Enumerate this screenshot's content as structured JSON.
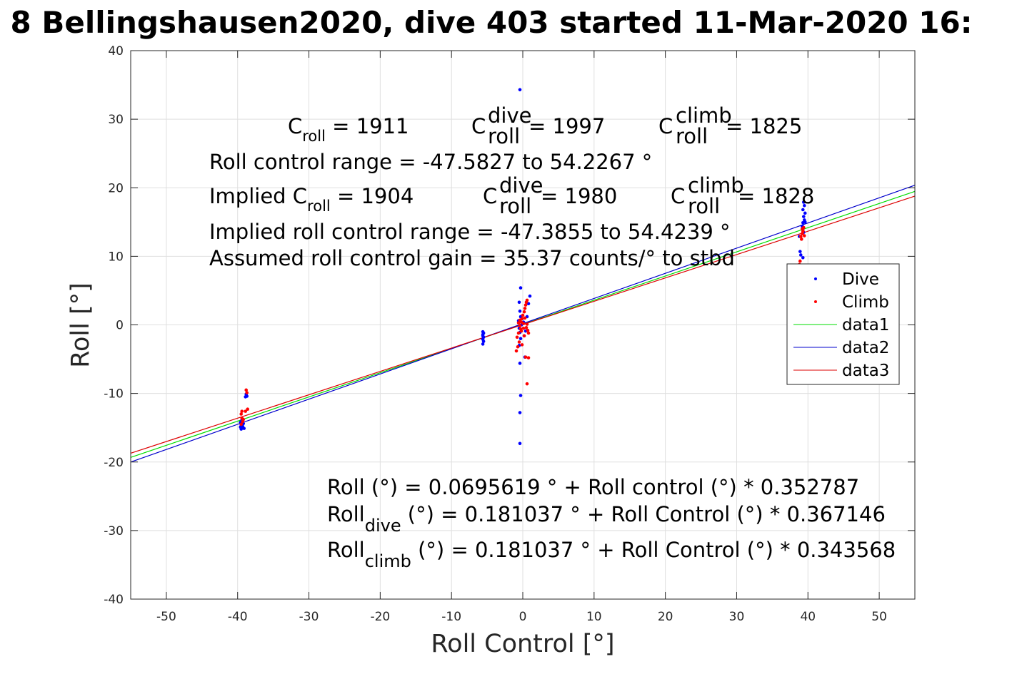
{
  "chart_data": {
    "type": "scatter",
    "title": "8 Bellingshausen2020, dive 403 started 11-Mar-2020 16:",
    "xlabel": "Roll Control [°]",
    "ylabel": "Roll [°]",
    "xlim": [
      -55,
      55
    ],
    "ylim": [
      -40,
      40
    ],
    "grid": true,
    "legend_position": "right",
    "x_ticks": [
      -50,
      -40,
      -30,
      -20,
      -10,
      0,
      10,
      20,
      30,
      40,
      50
    ],
    "y_ticks": [
      -40,
      -30,
      -20,
      -10,
      0,
      10,
      20,
      30,
      40
    ],
    "legend": [
      "Dive",
      "Climb",
      "data1",
      "data2",
      "data3"
    ],
    "series": [
      {
        "name": "Dive",
        "kind": "points",
        "color": "#0000ff",
        "points": [
          [
            -39.6,
            -14.2
          ],
          [
            -39.5,
            -14.6
          ],
          [
            -39.4,
            -15.0
          ],
          [
            -39.3,
            -14.8
          ],
          [
            -39.5,
            -15.2
          ],
          [
            -39.2,
            -14.4
          ],
          [
            -39.4,
            -13.9
          ],
          [
            -39.6,
            -14.9
          ],
          [
            -39.1,
            -15.1
          ],
          [
            -38.9,
            -10.5
          ],
          [
            -38.8,
            -10.1
          ],
          [
            -38.7,
            -10.4
          ],
          [
            -5.6,
            -1.0
          ],
          [
            -5.6,
            -1.4
          ],
          [
            -5.5,
            -1.8
          ],
          [
            -5.6,
            -2.1
          ],
          [
            -5.5,
            -2.4
          ],
          [
            -5.6,
            -2.8
          ],
          [
            -5.5,
            -1.2
          ],
          [
            -5.6,
            -1.6
          ],
          [
            -0.4,
            34.3
          ],
          [
            -0.3,
            5.4
          ],
          [
            -0.5,
            3.3
          ],
          [
            -0.4,
            2.0
          ],
          [
            -0.3,
            1.2
          ],
          [
            -0.6,
            0.6
          ],
          [
            -0.2,
            0.0
          ],
          [
            -0.5,
            -0.5
          ],
          [
            -0.4,
            -1.1
          ],
          [
            -0.3,
            -2.0
          ],
          [
            -0.5,
            -3.0
          ],
          [
            -0.4,
            -5.6
          ],
          [
            -0.3,
            -10.3
          ],
          [
            -0.4,
            -12.8
          ],
          [
            -0.4,
            -17.3
          ],
          [
            0.3,
            -4.7
          ],
          [
            0.2,
            -1.6
          ],
          [
            0.6,
            1.2
          ],
          [
            1.0,
            4.2
          ],
          [
            0.8,
            3.1
          ],
          [
            -0.1,
            0.9
          ],
          [
            0.1,
            0.4
          ],
          [
            0.4,
            -0.9
          ],
          [
            38.9,
            10.7
          ],
          [
            39.0,
            10.2
          ],
          [
            39.3,
            9.8
          ],
          [
            38.8,
            12.9
          ],
          [
            39.4,
            13.5
          ],
          [
            39.3,
            14.9
          ],
          [
            39.5,
            15.3
          ],
          [
            39.4,
            15.8
          ],
          [
            39.6,
            16.3
          ],
          [
            39.3,
            16.8
          ],
          [
            39.5,
            17.4
          ],
          [
            39.4,
            17.9
          ],
          [
            39.2,
            14.4
          ],
          [
            39.6,
            15.0
          ]
        ]
      },
      {
        "name": "Climb",
        "kind": "points",
        "color": "#ff0000",
        "points": [
          [
            -39.5,
            -13.0
          ],
          [
            -39.4,
            -13.6
          ],
          [
            -39.3,
            -14.1
          ],
          [
            -39.5,
            -14.5
          ],
          [
            -39.2,
            -13.8
          ],
          [
            -39.4,
            -12.6
          ],
          [
            -38.8,
            -9.5
          ],
          [
            -38.7,
            -9.9
          ],
          [
            -38.6,
            -12.3
          ],
          [
            -38.9,
            -12.6
          ],
          [
            -0.9,
            -3.8
          ],
          [
            -0.7,
            -3.2
          ],
          [
            -0.5,
            -2.5
          ],
          [
            -0.8,
            -1.8
          ],
          [
            -0.6,
            -1.2
          ],
          [
            -0.3,
            -0.6
          ],
          [
            -0.4,
            -0.1
          ],
          [
            -0.2,
            0.4
          ],
          [
            -0.1,
            0.9
          ],
          [
            0.0,
            1.4
          ],
          [
            0.2,
            1.9
          ],
          [
            0.3,
            2.4
          ],
          [
            0.4,
            2.9
          ],
          [
            0.5,
            3.3
          ],
          [
            0.6,
            3.6
          ],
          [
            0.7,
            -0.8
          ],
          [
            0.8,
            -1.2
          ],
          [
            0.5,
            -0.4
          ],
          [
            0.1,
            0.2
          ],
          [
            -0.2,
            -0.9
          ],
          [
            -0.4,
            0.7
          ],
          [
            0.2,
            -1.6
          ],
          [
            0.4,
            -4.7
          ],
          [
            0.8,
            -4.8
          ],
          [
            -0.1,
            -2.9
          ],
          [
            0.3,
            1.0
          ],
          [
            -0.6,
            0.3
          ],
          [
            0.6,
            0.1
          ],
          [
            0.6,
            -8.6
          ],
          [
            0.1,
            -0.5
          ],
          [
            38.8,
            8.8
          ],
          [
            38.9,
            9.3
          ],
          [
            39.0,
            12.9
          ],
          [
            39.2,
            13.3
          ],
          [
            39.3,
            13.8
          ],
          [
            39.4,
            14.2
          ],
          [
            39.1,
            12.5
          ],
          [
            39.5,
            13.0
          ],
          [
            39.3,
            13.6
          ],
          [
            39.2,
            14.0
          ]
        ]
      },
      {
        "name": "data1",
        "kind": "line",
        "color": "#00dd00",
        "x": [
          -55,
          55
        ],
        "y": [
          -19.33,
          19.47
        ]
      },
      {
        "name": "data2",
        "kind": "line",
        "color": "#0000cc",
        "x": [
          -55,
          55
        ],
        "y": [
          -20.01,
          20.37
        ]
      },
      {
        "name": "data3",
        "kind": "line",
        "color": "#dd0000",
        "x": [
          -55,
          55
        ],
        "y": [
          -18.72,
          18.78
        ]
      }
    ],
    "annotations": {
      "c_roll_line": {
        "c_base": "C",
        "c_sub": "roll",
        "c_val": " = 1911",
        "dive_base": "C",
        "dive_sup": "dive",
        "dive_sub": "roll",
        "dive_val": " = 1997",
        "climb_base": "C",
        "climb_sup": "climb",
        "climb_sub": "roll",
        "climb_val": " = 1825"
      },
      "range_line": "Roll control range = -47.5827 to 54.2267 °",
      "implied_line": {
        "c_base": "Implied C",
        "c_sub": "roll",
        "c_val": " = 1904",
        "dive_base": "C",
        "dive_sup": "dive",
        "dive_sub": "roll",
        "dive_val": " = 1980",
        "climb_base": "C",
        "climb_sup": "climb",
        "climb_sub": "roll",
        "climb_val": " = 1828"
      },
      "implied_range_line": "Implied roll control range = -47.3855 to 54.4239 °",
      "gain_line": "Assumed roll control gain = 35.37 counts/° to stbd",
      "fit_all": "Roll (°) = 0.0695619 ° + Roll control (°) * 0.352787",
      "fit_dive": {
        "base": "Roll",
        "sub": "dive",
        "rest": " (°) = 0.181037 ° + Roll Control (°) * 0.367146"
      },
      "fit_climb": {
        "base": "Roll",
        "sub": "climb",
        "rest": " (°) = 0.181037 ° + Roll Control (°) * 0.343568"
      }
    }
  }
}
